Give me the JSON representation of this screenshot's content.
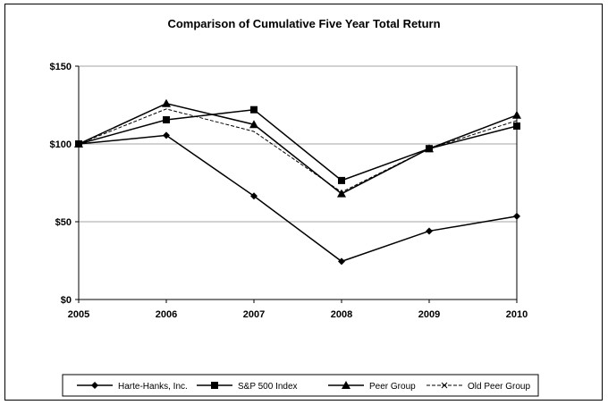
{
  "chart_data": {
    "type": "line",
    "title": "Comparison of Cumulative Five Year Total Return",
    "x": [
      "2005",
      "2006",
      "2007",
      "2008",
      "2009",
      "2010"
    ],
    "ylim": [
      0,
      150
    ],
    "yticks": [
      "$0",
      "$50",
      "$100",
      "$150"
    ],
    "ytick_values": [
      0,
      50,
      100,
      150
    ],
    "grid": true,
    "legend_position": "bottom",
    "series": [
      {
        "name": "Harte-Hanks, Inc.",
        "values": [
          100,
          105.5,
          66.5,
          24.5,
          44,
          53.5
        ],
        "marker": "diamond",
        "dashed": false,
        "color": "#000000"
      },
      {
        "name": "S&P 500 Index",
        "values": [
          100,
          115.5,
          122,
          76.5,
          97,
          111.5
        ],
        "marker": "square",
        "dashed": false,
        "color": "#000000"
      },
      {
        "name": "Peer Group",
        "values": [
          100,
          126,
          112.5,
          68,
          97,
          118.5
        ],
        "marker": "triangle",
        "dashed": false,
        "color": "#000000"
      },
      {
        "name": "Old Peer Group",
        "values": [
          100,
          122.5,
          108,
          69,
          97,
          115
        ],
        "marker": "x",
        "dashed": true,
        "color": "#000000"
      }
    ]
  }
}
